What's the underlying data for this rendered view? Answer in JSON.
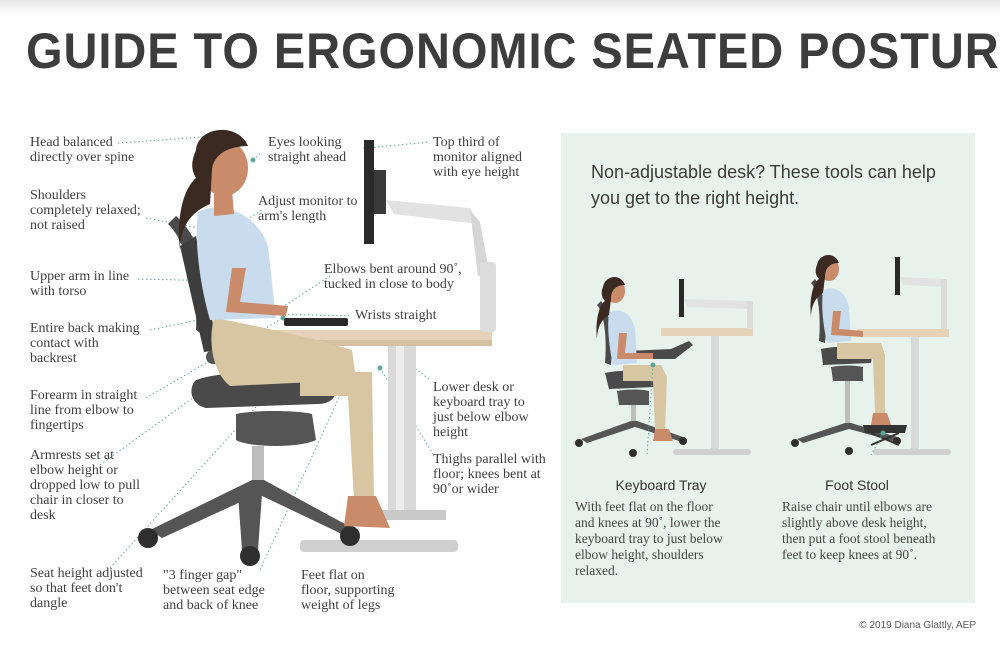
{
  "title": "GUIDE TO ERGONOMIC SEATED POSTURE",
  "labels": {
    "head": "Head balanced\ndirectly over spine",
    "shoulders": "Shoulders\ncompletely relaxed;\nnot raised",
    "upper_arm": "Upper arm in line\nwith torso",
    "back": "Entire back making\ncontact with\nbackrest",
    "forearm": "Forearm in straight\nline from elbow to\nfingertips",
    "armrests": "Armrests set at\nelbow height or\ndropped low to pull\nchair in closer to\ndesk",
    "seat_height": "Seat height adjusted\nso that feet don't\ndangle",
    "finger_gap": "\"3 finger gap\"\nbetween seat edge\nand back of knee",
    "feet": "Feet flat on\nfloor, supporting\nweight of legs",
    "eyes": "Eyes looking\nstraight ahead",
    "monitor_distance": "Adjust monitor to\narm's length",
    "monitor_top": "Top third of\nmonitor aligned\nwith eye height",
    "elbows": "Elbows bent around 90˚,\ntucked in close to body",
    "wrists": "Wrists straight",
    "desk": "Lower desk or\nkeyboard tray to\njust below elbow\nheight",
    "thighs": "Thighs parallel with\nfloor; knees bent at\n90˚or wider"
  },
  "panel": {
    "heading": "Non-adjustable desk? These tools can help\nyou get to the right height.",
    "keyboard_tray": {
      "title": "Keyboard Tray",
      "description": "With feet flat on the floor\nand knees at 90˚, lower the\nkeyboard tray to just below\nelbow height, shoulders\nrelaxed."
    },
    "foot_stool": {
      "title": "Foot Stool",
      "description": "Raise chair until elbows are\nslightly above desk height,\nthen put a foot stool beneath\nfeet to keep knees at 90˚."
    }
  },
  "credit": "© 2019 Diana Glattly, AEP",
  "colors": {
    "panel_bg": "#e8f2ec",
    "callout_dot": "#5aa89a",
    "desk_top": "#e6d2b8",
    "shirt": "#c9dcee",
    "pants": "#d8c6a3",
    "skin": "#c98b6a",
    "chair": "#4a4a4a"
  }
}
